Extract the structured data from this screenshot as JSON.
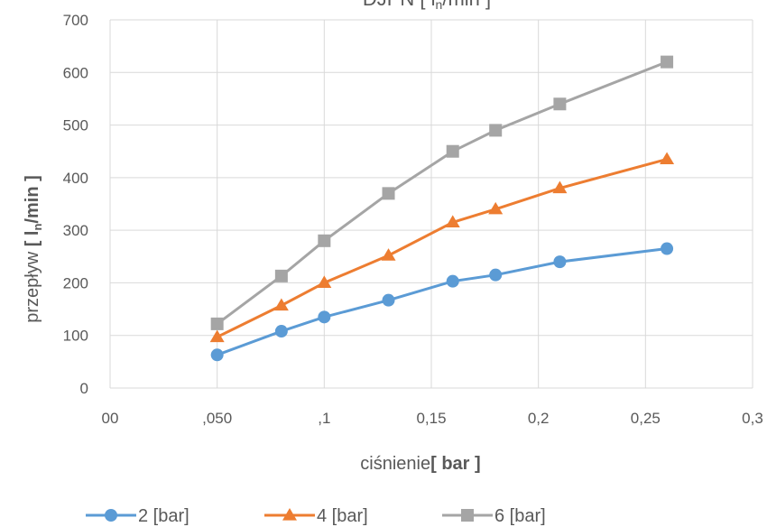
{
  "chart_data": {
    "type": "line",
    "title": "DJPN [ l n /min ]",
    "title_parts": {
      "main": "DJPN [ l",
      "sub": "n",
      "tail": "/min ]"
    },
    "xlabel": "ciśnienie[ bar ]",
    "xlabel_parts": {
      "main": "ciśnienie",
      "bold": "[ bar ]"
    },
    "ylabel": "przepływ [ l n /min ]",
    "ylabel_parts": {
      "main": "przepływ ",
      "bold1": "[ l",
      "sub": "n",
      "bold2": "/min ]"
    },
    "xlim": [
      0,
      0.3
    ],
    "ylim": [
      0,
      700
    ],
    "x_ticks": [
      {
        "value": 0,
        "label": "00"
      },
      {
        "value": 0.05,
        "label": ",050"
      },
      {
        "value": 0.1,
        "label": ",1"
      },
      {
        "value": 0.15,
        "label": "0,15"
      },
      {
        "value": 0.2,
        "label": "0,2"
      },
      {
        "value": 0.25,
        "label": "0,25"
      },
      {
        "value": 0.3,
        "label": "0,3"
      }
    ],
    "y_ticks": [
      0,
      100,
      200,
      300,
      400,
      500,
      600,
      700
    ],
    "grid": true,
    "legend_position": "bottom",
    "x": [
      0.05,
      0.08,
      0.1,
      0.13,
      0.16,
      0.18,
      0.21,
      0.26
    ],
    "series": [
      {
        "name": "2 [bar]",
        "color": "#5B9BD5",
        "marker": "circle",
        "values": [
          63,
          108,
          135,
          167,
          203,
          215,
          240,
          265
        ]
      },
      {
        "name": "4 [bar]",
        "color": "#ED7D31",
        "marker": "triangle",
        "values": [
          97,
          157,
          200,
          252,
          315,
          340,
          380,
          435
        ]
      },
      {
        "name": "6 [bar]",
        "color": "#A5A5A5",
        "marker": "square",
        "values": [
          122,
          213,
          280,
          370,
          450,
          490,
          540,
          620
        ]
      }
    ]
  }
}
